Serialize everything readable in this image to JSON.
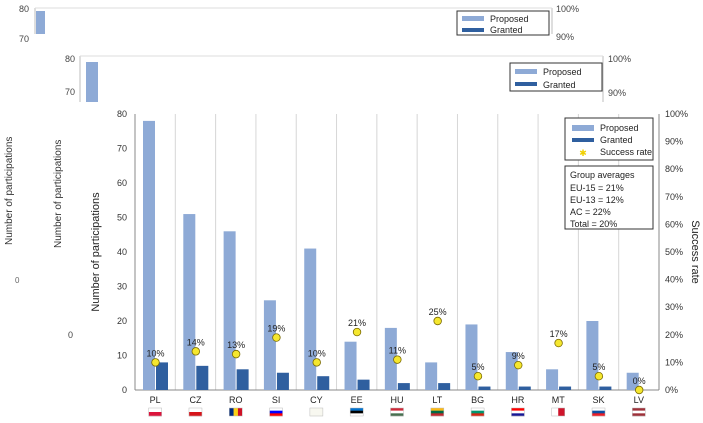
{
  "chart_data": {
    "type": "bar",
    "categories": [
      "PL",
      "CZ",
      "RO",
      "SI",
      "CY",
      "EE",
      "HU",
      "LT",
      "BG",
      "HR",
      "MT",
      "SK",
      "LV"
    ],
    "series": [
      {
        "name": "Proposed",
        "axis": "left",
        "values": [
          78,
          51,
          46,
          26,
          41,
          14,
          18,
          8,
          19,
          11,
          6,
          20,
          5
        ],
        "color": "#8eaad6"
      },
      {
        "name": "Granted",
        "axis": "left",
        "values": [
          8,
          7,
          6,
          5,
          4,
          3,
          2,
          2,
          1,
          1,
          1,
          1,
          0
        ],
        "color": "#2f5f9f"
      },
      {
        "name": "Success rate",
        "axis": "right",
        "type": "scatter",
        "values": [
          10,
          14,
          13,
          19,
          10,
          21,
          11,
          25,
          5,
          9,
          17,
          5,
          0
        ],
        "color": "#f5e72e"
      }
    ],
    "data_labels": [
      "10%",
      "14%",
      "13%",
      "19%",
      "10%",
      "21%",
      "11%",
      "25%",
      "5%",
      "9%",
      "17%",
      "5%",
      "0%"
    ],
    "ylabel": "Number of participations",
    "y2label": "Success rate",
    "ylim": [
      0,
      80
    ],
    "y2lim": [
      0,
      100
    ],
    "y_ticks": [
      "0",
      "10",
      "20",
      "30",
      "40",
      "50",
      "60",
      "70",
      "80"
    ],
    "y2_ticks": [
      "0%",
      "10%",
      "20%",
      "30%",
      "40%",
      "50%",
      "60%",
      "70%",
      "80%",
      "90%",
      "100%"
    ],
    "grid": "vertical",
    "legend": {
      "position": "top-right",
      "entries": [
        "Proposed",
        "Granted",
        "Success rate"
      ]
    },
    "averages": {
      "title": "Group averages",
      "lines": [
        "EU-15 = 21%",
        "EU-13 = 12%",
        "AC = 22%",
        "Total = 20%"
      ]
    },
    "flags": {
      "PL": [
        "#ffffff",
        "#dc143c",
        "h"
      ],
      "CZ": [
        "#ffffff",
        "#d7141a",
        "h"
      ],
      "RO": [
        "#002b7f",
        "#fcd116",
        "#ce1126",
        "v"
      ],
      "SI": [
        "#ffffff",
        "#0000ff",
        "#ff0000",
        "h"
      ],
      "CY": [
        "#f8f8f0",
        "#f8f8f0",
        "h"
      ],
      "EE": [
        "#0072ce",
        "#000000",
        "#ffffff",
        "h"
      ],
      "HU": [
        "#ce2939",
        "#ffffff",
        "#477050",
        "h"
      ],
      "LT": [
        "#fdb913",
        "#006a44",
        "#c1272d",
        "h"
      ],
      "BG": [
        "#ffffff",
        "#00966e",
        "#d62612",
        "h"
      ],
      "HR": [
        "#ff0000",
        "#ffffff",
        "#171796",
        "h"
      ],
      "MT": [
        "#ffffff",
        "#cf142b",
        "v"
      ],
      "SK": [
        "#ffffff",
        "#0b4ea2",
        "#ee1c25",
        "h"
      ],
      "LV": [
        "#9e3039",
        "#ffffff",
        "#9e3039",
        "h"
      ]
    }
  },
  "ghost_frames": {
    "back": {
      "y_ticks": [
        "80",
        "70"
      ],
      "right_ticks": [
        "100%",
        "90%"
      ],
      "legend": [
        "Proposed",
        "Granted"
      ],
      "bar_value": 78
    },
    "middle": {
      "y_ticks": [
        "80",
        "70"
      ],
      "right_ticks": [
        "100%",
        "90%"
      ],
      "legend": [
        "Proposed",
        "Granted"
      ],
      "bar_value": 78
    },
    "left_fragments": {
      "ylabel": "Number of participations",
      "tick_left": "0",
      "tick_mid": "0"
    }
  }
}
